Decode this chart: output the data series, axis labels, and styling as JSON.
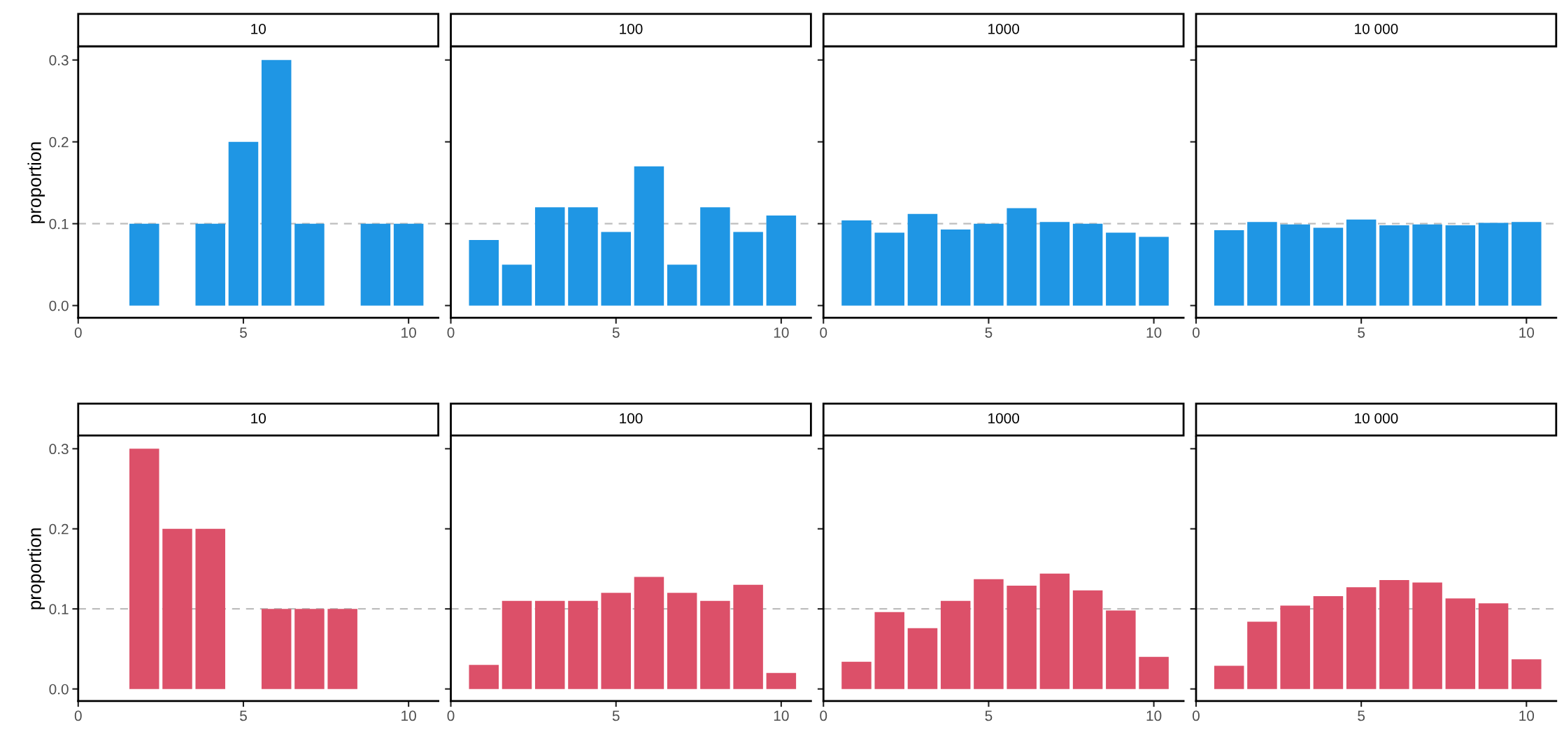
{
  "chart_data": [
    {
      "type": "bar",
      "title": "10",
      "ylabel": "proportion",
      "x": [
        1,
        2,
        3,
        4,
        5,
        6,
        7,
        8,
        9,
        10
      ],
      "values": [
        0,
        0.1,
        0,
        0.1,
        0.2,
        0.3,
        0.1,
        0,
        0.1,
        0.1
      ],
      "color": "#1f96e4",
      "xlim": [
        0,
        10.9
      ],
      "xticks": [
        0,
        5,
        10
      ],
      "ylim": [
        -0.015,
        0.315
      ],
      "yticks": [
        {
          "value": 0,
          "label": "0.0"
        },
        0.1,
        0.2,
        0.3
      ],
      "ref_lines": [
        {
          "axis": "y",
          "value": 0.1,
          "color": "#bebebe",
          "line_style": "dashed"
        }
      ]
    },
    {
      "type": "bar",
      "title": "100",
      "x": [
        1,
        2,
        3,
        4,
        5,
        6,
        7,
        8,
        9,
        10
      ],
      "values": [
        0.08,
        0.05,
        0.12,
        0.12,
        0.09,
        0.17,
        0.05,
        0.12,
        0.09,
        0.11
      ],
      "color": "#1f96e4",
      "xlim": [
        0,
        10.9
      ],
      "xticks": [
        0,
        5,
        10
      ],
      "ylim": [
        -0.015,
        0.315
      ],
      "yticks": [
        {
          "value": 0,
          "label": null
        },
        {
          "value": 0.1,
          "label": null
        },
        {
          "value": 0.2,
          "label": null
        },
        {
          "value": 0.3,
          "label": null
        }
      ],
      "tick_labels": "x",
      "ref_lines": [
        {
          "axis": "y",
          "value": 0.1,
          "color": "#bebebe",
          "line_style": "dashed"
        }
      ]
    },
    {
      "type": "bar",
      "title": "1000",
      "x": [
        1,
        2,
        3,
        4,
        5,
        6,
        7,
        8,
        9,
        10
      ],
      "values": [
        0.104,
        0.089,
        0.112,
        0.093,
        0.1,
        0.119,
        0.102,
        0.1,
        0.089,
        0.084
      ],
      "color": "#1f96e4",
      "xlim": [
        0,
        10.9
      ],
      "xticks": [
        0,
        5,
        10
      ],
      "ylim": [
        -0.015,
        0.315
      ],
      "yticks": [
        {
          "value": 0,
          "label": null
        },
        {
          "value": 0.1,
          "label": null
        },
        {
          "value": 0.2,
          "label": null
        },
        {
          "value": 0.3,
          "label": null
        }
      ],
      "tick_labels": "x",
      "ref_lines": [
        {
          "axis": "y",
          "value": 0.1,
          "color": "#bebebe",
          "line_style": "dashed"
        }
      ]
    },
    {
      "type": "bar",
      "title": "10 000",
      "x": [
        1,
        2,
        3,
        4,
        5,
        6,
        7,
        8,
        9,
        10
      ],
      "values": [
        0.092,
        0.102,
        0.099,
        0.095,
        0.105,
        0.098,
        0.099,
        0.098,
        0.101,
        0.102
      ],
      "color": "#1f96e4",
      "xlim": [
        0,
        10.9
      ],
      "xticks": [
        0,
        5,
        10
      ],
      "ylim": [
        -0.015,
        0.315
      ],
      "yticks": [
        {
          "value": 0,
          "label": null
        },
        {
          "value": 0.1,
          "label": null
        },
        {
          "value": 0.2,
          "label": null
        },
        {
          "value": 0.3,
          "label": null
        }
      ],
      "tick_labels": "x",
      "ref_lines": [
        {
          "axis": "y",
          "value": 0.1,
          "color": "#bebebe",
          "line_style": "dashed"
        }
      ]
    },
    {
      "type": "bar",
      "title": "10",
      "ylabel": "proportion",
      "x": [
        1,
        2,
        3,
        4,
        5,
        6,
        7,
        8,
        9,
        10
      ],
      "values": [
        0,
        0.3,
        0.2,
        0.2,
        0,
        0.1,
        0.1,
        0.1,
        0,
        0
      ],
      "color": "#dc5069",
      "xlim": [
        0,
        10.9
      ],
      "xticks": [
        0,
        5,
        10
      ],
      "ylim": [
        -0.015,
        0.315
      ],
      "yticks": [
        {
          "value": 0,
          "label": "0.0"
        },
        0.1,
        0.2,
        0.3
      ],
      "ref_lines": [
        {
          "axis": "y",
          "value": 0.1,
          "color": "#bebebe",
          "line_style": "dashed"
        }
      ]
    },
    {
      "type": "bar",
      "title": "100",
      "x": [
        1,
        2,
        3,
        4,
        5,
        6,
        7,
        8,
        9,
        10
      ],
      "values": [
        0.03,
        0.11,
        0.11,
        0.11,
        0.12,
        0.14,
        0.12,
        0.11,
        0.13,
        0.02
      ],
      "color": "#dc5069",
      "xlim": [
        0,
        10.9
      ],
      "xticks": [
        0,
        5,
        10
      ],
      "ylim": [
        -0.015,
        0.315
      ],
      "yticks": [
        {
          "value": 0,
          "label": null
        },
        {
          "value": 0.1,
          "label": null
        },
        {
          "value": 0.2,
          "label": null
        },
        {
          "value": 0.3,
          "label": null
        }
      ],
      "tick_labels": "x",
      "ref_lines": [
        {
          "axis": "y",
          "value": 0.1,
          "color": "#bebebe",
          "line_style": "dashed"
        }
      ]
    },
    {
      "type": "bar",
      "title": "1000",
      "x": [
        1,
        2,
        3,
        4,
        5,
        6,
        7,
        8,
        9,
        10
      ],
      "values": [
        0.034,
        0.096,
        0.076,
        0.11,
        0.137,
        0.129,
        0.144,
        0.123,
        0.098,
        0.04
      ],
      "color": "#dc5069",
      "xlim": [
        0,
        10.9
      ],
      "xticks": [
        0,
        5,
        10
      ],
      "ylim": [
        -0.015,
        0.315
      ],
      "yticks": [
        {
          "value": 0,
          "label": null
        },
        {
          "value": 0.1,
          "label": null
        },
        {
          "value": 0.2,
          "label": null
        },
        {
          "value": 0.3,
          "label": null
        }
      ],
      "tick_labels": "x",
      "ref_lines": [
        {
          "axis": "y",
          "value": 0.1,
          "color": "#bebebe",
          "line_style": "dashed"
        }
      ]
    },
    {
      "type": "bar",
      "title": "10 000",
      "x": [
        1,
        2,
        3,
        4,
        5,
        6,
        7,
        8,
        9,
        10
      ],
      "values": [
        0.029,
        0.084,
        0.104,
        0.116,
        0.127,
        0.136,
        0.133,
        0.113,
        0.107,
        0.037
      ],
      "color": "#dc5069",
      "xlim": [
        0,
        10.9
      ],
      "xticks": [
        0,
        5,
        10
      ],
      "ylim": [
        -0.015,
        0.315
      ],
      "yticks": [
        {
          "value": 0,
          "label": null
        },
        {
          "value": 0.1,
          "label": null
        },
        {
          "value": 0.2,
          "label": null
        },
        {
          "value": 0.3,
          "label": null
        }
      ],
      "tick_labels": "x",
      "ref_lines": [
        {
          "axis": "y",
          "value": 0.1,
          "color": "#bebebe",
          "line_style": "dashed"
        }
      ]
    }
  ]
}
